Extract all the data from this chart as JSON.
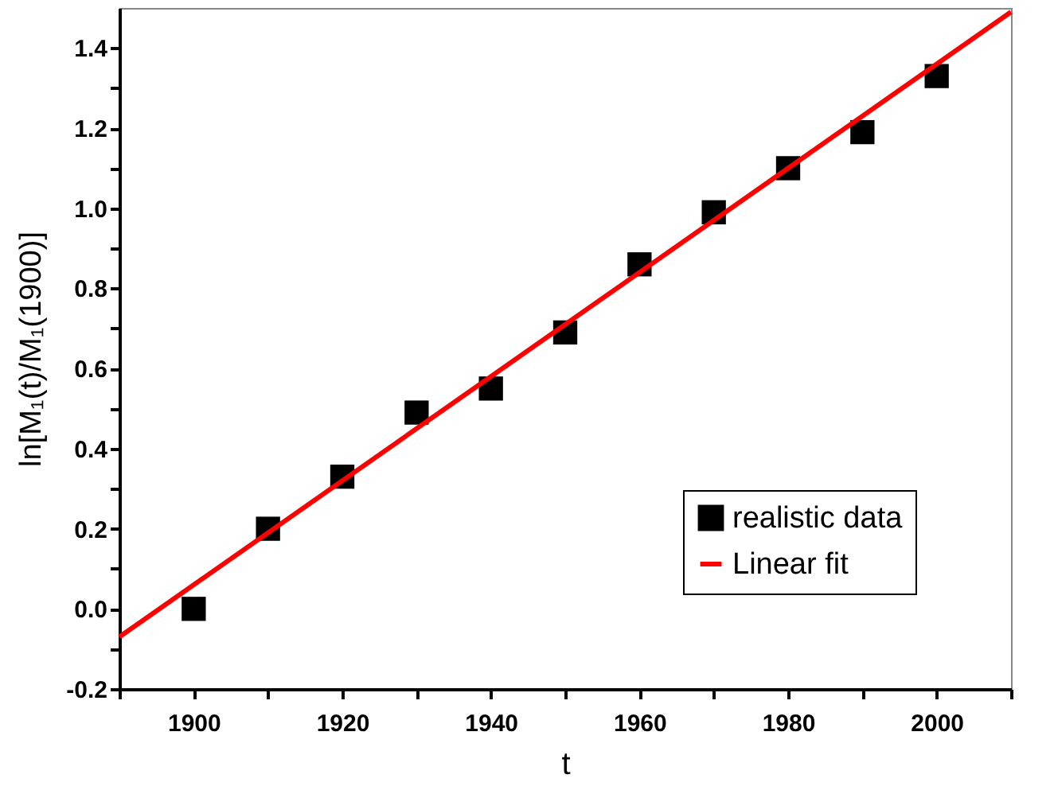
{
  "chart_data": {
    "type": "scatter",
    "xlabel": "t",
    "ylabel": "ln[M₁(t)/M₁(1900)]",
    "xlim": [
      1890,
      2010
    ],
    "ylim": [
      -0.2,
      1.5
    ],
    "xticks": [
      {
        "value": 1890,
        "label": null
      },
      1900,
      {
        "value": 1910,
        "label": null
      },
      1920,
      {
        "value": 1930,
        "label": null
      },
      1940,
      {
        "value": 1950,
        "label": null
      },
      1960,
      {
        "value": 1970,
        "label": null
      },
      1980,
      {
        "value": 1990,
        "label": null
      },
      2000,
      {
        "value": 2010,
        "label": null
      }
    ],
    "yticks": [
      -0.2,
      {
        "value": -0.1,
        "label": null
      },
      {
        "value": 0,
        "label": "0.0"
      },
      {
        "value": 0.1,
        "label": null
      },
      0.2,
      {
        "value": 0.3,
        "label": null
      },
      0.4,
      {
        "value": 0.5,
        "label": null
      },
      0.6,
      {
        "value": 0.7,
        "label": null
      },
      0.8,
      {
        "value": 0.9,
        "label": null
      },
      {
        "value": 1,
        "label": "1.0"
      },
      {
        "value": 1.1,
        "label": null
      },
      1.2,
      {
        "value": 1.3,
        "label": null
      },
      1.4
    ],
    "marker": "square",
    "legend": "bottom right",
    "grid": false,
    "series": [
      {
        "name": "realistic data",
        "type": "scatter",
        "color": "#000000",
        "x": [
          1900,
          1910,
          1920,
          1930,
          1940,
          1950,
          1960,
          1970,
          1980,
          1990,
          2000
        ],
        "values": [
          0.0,
          0.2,
          0.33,
          0.49,
          0.55,
          0.69,
          0.86,
          0.99,
          1.1,
          1.19,
          1.33
        ]
      },
      {
        "name": "Linear fit",
        "type": "line",
        "marker": "none",
        "color": "#ff0000",
        "x": [
          1890,
          2010
        ],
        "values": [
          -0.07,
          1.49
        ]
      }
    ]
  }
}
